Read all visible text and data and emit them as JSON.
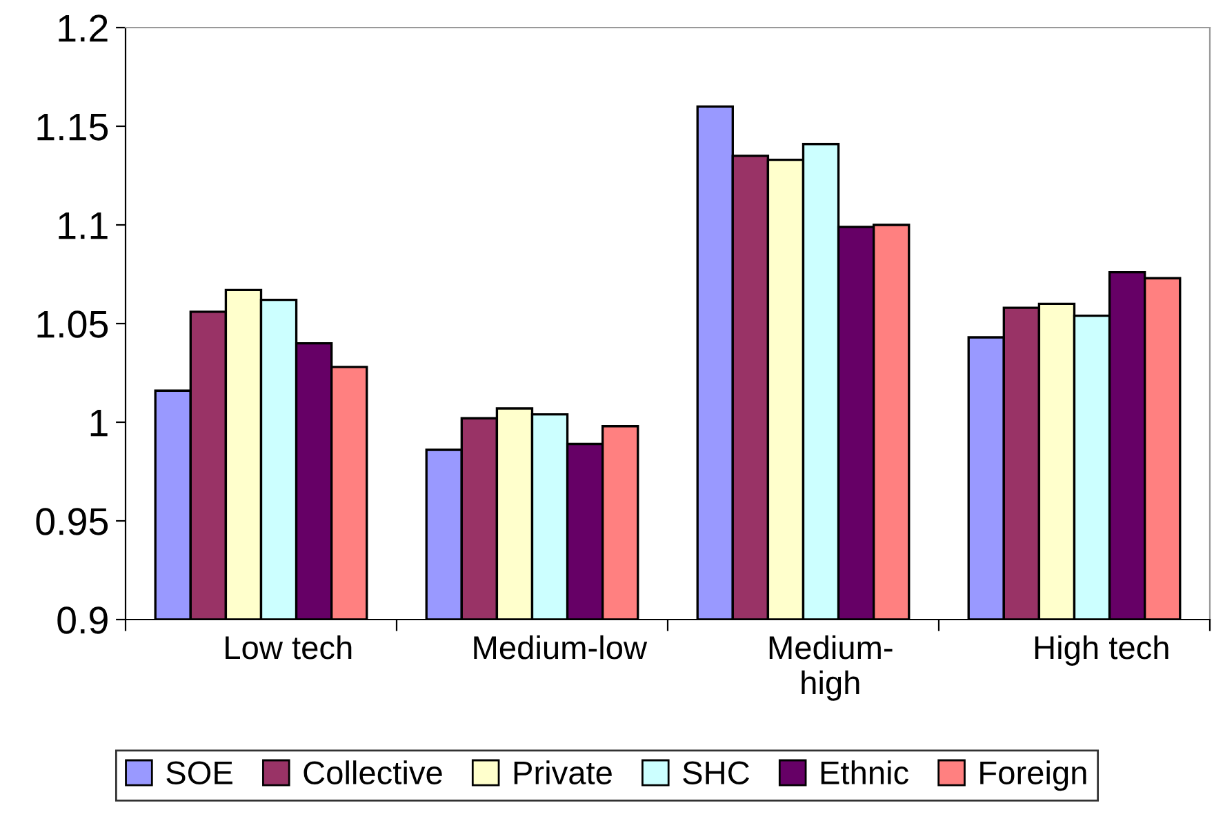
{
  "chart_data": {
    "type": "bar",
    "categories": [
      "Low tech",
      "Medium-low",
      "Medium-\nhigh",
      "High tech"
    ],
    "series": [
      {
        "name": "SOE",
        "color": "#9999ff",
        "values": [
          1.016,
          0.986,
          1.16,
          1.043
        ]
      },
      {
        "name": "Collective",
        "color": "#993366",
        "values": [
          1.056,
          1.002,
          1.135,
          1.058
        ]
      },
      {
        "name": "Private",
        "color": "#ffffcc",
        "values": [
          1.067,
          1.007,
          1.133,
          1.06
        ]
      },
      {
        "name": "SHC",
        "color": "#ccffff",
        "values": [
          1.062,
          1.004,
          1.141,
          1.054
        ]
      },
      {
        "name": "Ethnic",
        "color": "#660066",
        "values": [
          1.04,
          0.989,
          1.099,
          1.076
        ]
      },
      {
        "name": "Foreign",
        "color": "#ff8080",
        "values": [
          1.028,
          0.998,
          1.1,
          1.073
        ]
      }
    ],
    "ylim": [
      0.9,
      1.2
    ],
    "yticks": [
      0.9,
      0.95,
      1,
      1.05,
      1.1,
      1.15,
      1.2
    ],
    "grid": false,
    "legend": "bottom"
  }
}
